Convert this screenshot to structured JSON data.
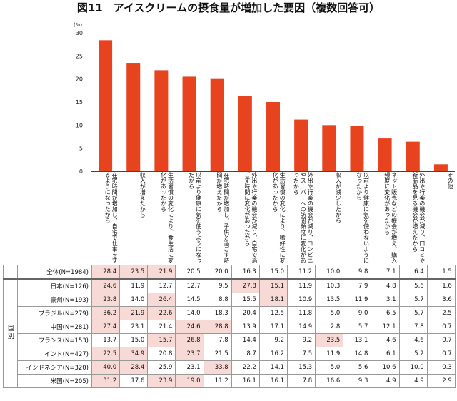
{
  "title": "図11　アイスクリームの摂食量が増加した要因（複数回答可）",
  "chart_data": {
    "type": "bar",
    "title": "図11　アイスクリームの摂食量が増加した要因（複数回答可）",
    "ylabel": "(%)",
    "ylim": [
      0,
      30
    ],
    "yticks": [
      0,
      5,
      10,
      15,
      20,
      25,
      30
    ],
    "color": "#e8431f",
    "categories": [
      "在宅時間が増加し、自宅で仕事をするようになったから",
      "収入が増えたから",
      "生活習慣の変化により、食生活に変化があったから",
      "以前より健康に気を使うようになったから",
      "在宅時間が増加し、子供と過ごす時間が増えたから",
      "外出や行楽の機会が減り、自宅で過ごす時間に変化があったから",
      "生活習慣の変化により、嗜好性に変化があったから",
      "外出や行楽の機会が減り、コンビニやスーパーへの訪問頻度に変化があったから",
      "収入が減少したから",
      "以前より健康に気を使わないようになったから",
      "ネット販売などの機会が増え、購入頻度に変化があったから",
      "外出や行楽の機会が減り、口コミや新商品を見る機会が増えたから",
      "その他"
    ],
    "values": [
      28.4,
      23.5,
      21.9,
      20.5,
      20.0,
      16.3,
      15.0,
      11.2,
      10.0,
      9.8,
      7.1,
      6.4,
      1.5
    ],
    "table": {
      "group_label": "国別",
      "rows": [
        {
          "label": "全体(N=1984)",
          "values": [
            "28.4",
            "23.5",
            "21.9",
            "20.5",
            "20.0",
            "16.3",
            "15.0",
            "11.2",
            "10.0",
            "9.8",
            "7.1",
            "6.4",
            "1.5"
          ],
          "highlight": [
            0,
            1,
            2
          ]
        },
        {
          "label": "日本(N=126)",
          "values": [
            "24.6",
            "11.9",
            "12.7",
            "12.7",
            "9.5",
            "27.8",
            "15.1",
            "11.9",
            "10.3",
            "7.9",
            "4.8",
            "5.6",
            "1.6"
          ],
          "highlight": [
            0,
            5,
            6
          ]
        },
        {
          "label": "豪州(N=193)",
          "values": [
            "23.8",
            "14.0",
            "26.4",
            "14.5",
            "8.8",
            "15.5",
            "18.1",
            "10.9",
            "13.5",
            "11.9",
            "3.1",
            "5.7",
            "3.6"
          ],
          "highlight": [
            0,
            2,
            6
          ]
        },
        {
          "label": "ブラジル(N=279)",
          "values": [
            "36.2",
            "21.9",
            "22.6",
            "14.0",
            "18.3",
            "20.4",
            "12.5",
            "11.8",
            "5.0",
            "9.0",
            "6.5",
            "5.7",
            "2.5"
          ],
          "highlight": [
            0,
            1,
            2
          ]
        },
        {
          "label": "中国(N=281)",
          "values": [
            "27.4",
            "23.1",
            "21.4",
            "24.6",
            "28.8",
            "13.9",
            "17.1",
            "14.9",
            "2.8",
            "5.7",
            "12.1",
            "7.8",
            "0.7"
          ],
          "highlight": [
            0,
            3,
            4
          ]
        },
        {
          "label": "フランス(N=153)",
          "values": [
            "13.7",
            "15.0",
            "15.7",
            "26.8",
            "7.8",
            "14.4",
            "9.2",
            "9.2",
            "23.5",
            "13.1",
            "4.6",
            "4.6",
            "0.7"
          ],
          "highlight": [
            2,
            3,
            8
          ]
        },
        {
          "label": "インド(N=427)",
          "values": [
            "22.5",
            "34.9",
            "20.8",
            "23.7",
            "21.5",
            "8.7",
            "16.2",
            "7.5",
            "11.9",
            "14.8",
            "6.1",
            "5.2",
            "0.7"
          ],
          "highlight": [
            0,
            1,
            3
          ]
        },
        {
          "label": "インドネシア(N=320)",
          "values": [
            "40.0",
            "28.4",
            "25.9",
            "23.1",
            "33.8",
            "22.2",
            "14.1",
            "15.3",
            "5.0",
            "5.6",
            "10.6",
            "10.0",
            "0.3"
          ],
          "highlight": [
            0,
            1,
            4
          ]
        },
        {
          "label": "米国(N=205)",
          "values": [
            "31.2",
            "17.6",
            "23.9",
            "19.0",
            "11.2",
            "16.1",
            "16.1",
            "7.8",
            "16.6",
            "9.3",
            "4.9",
            "4.9",
            "2.9"
          ],
          "highlight": [
            0,
            2,
            3
          ]
        }
      ]
    }
  }
}
